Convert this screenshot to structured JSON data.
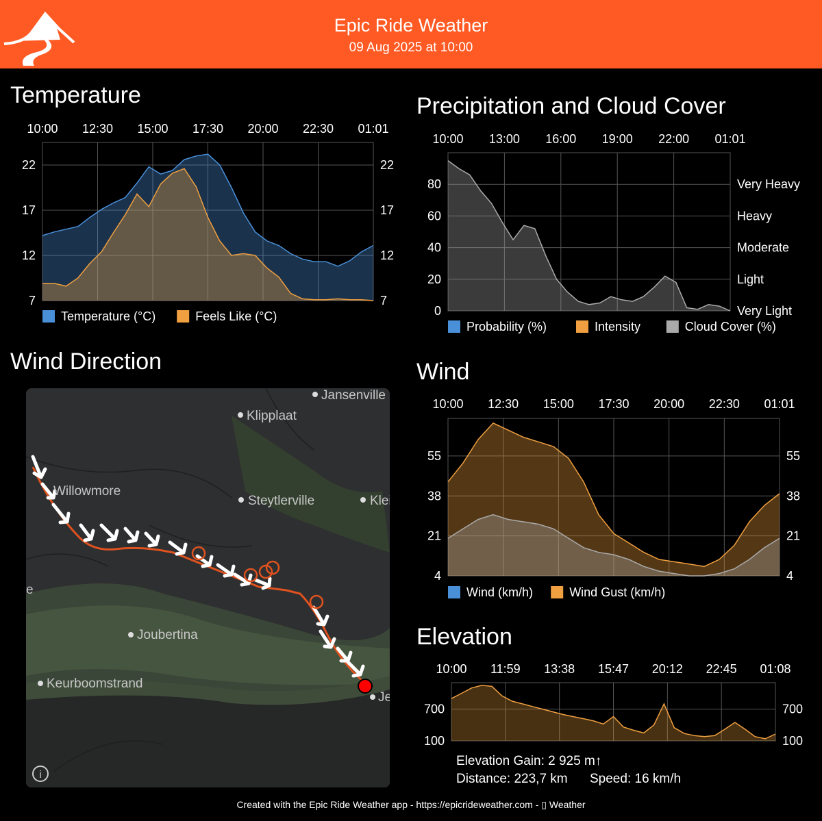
{
  "header": {
    "title": "Epic Ride Weather",
    "date": "09 Aug 2025 at 10:00"
  },
  "colors": {
    "header_bg": "#ff5a23",
    "temperature": "#4a90d9",
    "feels_like": "#f0a040",
    "probability": "#4a90d9",
    "intensity": "#f0a040",
    "cloud_cover": "#aaaaaa",
    "route": "#e0521f"
  },
  "panels": {
    "temperature": "Temperature",
    "precipitation": "Precipitation and Cloud Cover",
    "wind_direction": "Wind Direction",
    "wind": "Wind",
    "elevation": "Elevation"
  },
  "chart_data": [
    {
      "id": "temperature",
      "type": "area",
      "x_ticks": [
        "10:00",
        "12:30",
        "15:00",
        "17:30",
        "20:00",
        "22:30",
        "01:01"
      ],
      "y_ticks": [
        7,
        12,
        17,
        22
      ],
      "ylim": [
        7,
        24.5
      ],
      "series": [
        {
          "name": "Temperature (°C)",
          "values": [
            14.2,
            14.6,
            14.9,
            15.2,
            16.2,
            17.1,
            17.8,
            18.4,
            20.0,
            21.8,
            21.0,
            21.4,
            22.6,
            23.0,
            23.2,
            22.0,
            19.5,
            16.7,
            14.6,
            13.6,
            13.1,
            12.2,
            11.6,
            11.3,
            11.3,
            10.8,
            11.4,
            12.4,
            13.1
          ]
        },
        {
          "name": "Feels Like (°C)",
          "values": [
            8.9,
            8.9,
            8.6,
            9.5,
            11.1,
            12.4,
            14.5,
            16.5,
            18.8,
            17.4,
            19.9,
            21.1,
            21.6,
            19.6,
            16.2,
            13.6,
            12.0,
            12.2,
            12.0,
            10.6,
            9.6,
            7.8,
            7.2,
            7.1,
            7.1,
            7.2,
            7.1,
            7.1,
            7.0
          ]
        }
      ]
    },
    {
      "id": "precipitation",
      "type": "area",
      "x_ticks": [
        "10:00",
        "13:00",
        "16:00",
        "19:00",
        "22:00",
        "01:01"
      ],
      "y_ticks": [
        0,
        20,
        40,
        60,
        80
      ],
      "y_right_labels": [
        "Very Light",
        "Light",
        "Moderate",
        "Heavy",
        "Very Heavy"
      ],
      "ylim": [
        0,
        100
      ],
      "legend": [
        "Probability (%)",
        "Intensity",
        "Cloud Cover (%)"
      ],
      "series": [
        {
          "name": "Cloud Cover (%)",
          "values": [
            95,
            90,
            86,
            76,
            68,
            56,
            45,
            54,
            52,
            35,
            20,
            12,
            6,
            4,
            5,
            9,
            7,
            6,
            9,
            15,
            22,
            18,
            2,
            1,
            4,
            3,
            0
          ]
        }
      ]
    },
    {
      "id": "wind",
      "type": "area",
      "x_ticks": [
        "10:00",
        "12:30",
        "15:00",
        "17:30",
        "20:00",
        "22:30",
        "01:01"
      ],
      "y_ticks": [
        4,
        21,
        38,
        55
      ],
      "ylim": [
        4,
        71
      ],
      "series": [
        {
          "name": "Wind (km/h)",
          "values": [
            20,
            24,
            28,
            30,
            28,
            27,
            26,
            24,
            20,
            16,
            14,
            13,
            11,
            8,
            6,
            5,
            4,
            4,
            5,
            7,
            11,
            16,
            20
          ]
        },
        {
          "name": "Wind Gust (km/h)",
          "values": [
            44,
            52,
            62,
            69,
            66,
            63,
            61,
            59,
            54,
            44,
            30,
            22,
            18,
            14,
            11,
            10,
            9,
            8,
            11,
            17,
            27,
            34,
            39
          ]
        }
      ]
    },
    {
      "id": "elevation",
      "type": "area",
      "x_ticks": [
        "10:00",
        "11:59",
        "13:38",
        "15:47",
        "20:12",
        "22:45",
        "01:08"
      ],
      "y_ticks": [
        100,
        700
      ],
      "ylim": [
        100,
        1200
      ],
      "series": [
        {
          "name": "Elevation",
          "values": [
            900,
            1000,
            1100,
            1150,
            1130,
            950,
            850,
            800,
            750,
            700,
            650,
            600,
            560,
            520,
            480,
            420,
            560,
            360,
            300,
            250,
            400,
            800,
            350,
            240,
            200,
            180,
            200,
            320,
            450,
            320,
            180,
            140,
            230
          ]
        }
      ]
    }
  ],
  "map": {
    "places": [
      "Jansenville",
      "Klipplaat",
      "Willowmore",
      "Steytlerville",
      "Klei",
      "Joubertina",
      "Keurboomstrand",
      "Je",
      "e"
    ]
  },
  "elevation_info": {
    "gain": "Elevation Gain: 2 925 m↑",
    "distance": "Distance: 223,7 km",
    "speed": "Speed: 16 km/h"
  },
  "footer": "Created with the Epic Ride Weather app - https://epicrideweather.com - ▯ Weather"
}
